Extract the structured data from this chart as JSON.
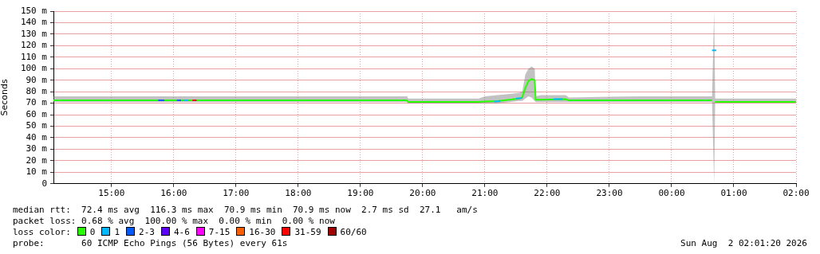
{
  "chart_data": {
    "type": "line",
    "ylabel": "Seconds",
    "legend_title": "loss color:",
    "legend": "bottom",
    "grid": true,
    "marker": "none",
    "line_style": "solid",
    "xlim": [
      "2026-08-01T14:04",
      "2026-08-02T02:00"
    ],
    "xticks": [
      {
        "value": "2026-08-01T15:00",
        "label": "15:00"
      },
      {
        "value": "2026-08-01T16:00",
        "label": "16:00"
      },
      {
        "value": "2026-08-01T17:00",
        "label": "17:00"
      },
      {
        "value": "2026-08-01T18:00",
        "label": "18:00"
      },
      {
        "value": "2026-08-01T19:00",
        "label": "19:00"
      },
      {
        "value": "2026-08-01T20:00",
        "label": "20:00"
      },
      {
        "value": "2026-08-01T21:00",
        "label": "21:00"
      },
      {
        "value": "2026-08-01T22:00",
        "label": "22:00"
      },
      {
        "value": "2026-08-01T23:00",
        "label": "23:00"
      },
      {
        "value": "2026-08-02T00:00",
        "label": "00:00"
      },
      {
        "value": "2026-08-02T01:00",
        "label": "01:00"
      },
      {
        "value": "2026-08-02T02:00",
        "label": "02:00"
      }
    ],
    "ylim": [
      0,
      150
    ],
    "yticks": [
      0,
      {
        "value": 10,
        "label": "10 m"
      },
      {
        "value": 20,
        "label": "20 m"
      },
      {
        "value": 30,
        "label": "30 m"
      },
      {
        "value": 40,
        "label": "40 m"
      },
      {
        "value": 50,
        "label": "50 m"
      },
      {
        "value": 60,
        "label": "60 m"
      },
      {
        "value": 70,
        "label": "70 m"
      },
      {
        "value": 80,
        "label": "80 m"
      },
      {
        "value": 90,
        "label": "90 m"
      },
      {
        "value": 100,
        "label": "100 m"
      },
      {
        "value": 110,
        "label": "110 m"
      },
      {
        "value": 120,
        "label": "120 m"
      },
      {
        "value": 130,
        "label": "130 m"
      },
      {
        "value": 140,
        "label": "140 m"
      },
      {
        "value": 150,
        "label": "150 m"
      }
    ],
    "series": [
      {
        "name": "0",
        "color": "#26ff00",
        "x": [
          "2026-08-01T14:04",
          "2026-08-01T19:45",
          "2026-08-01T19:46",
          "2026-08-01T20:54",
          "2026-08-01T21:00",
          "2026-08-01T21:12",
          "2026-08-01T21:24",
          "2026-08-01T21:33",
          "2026-08-01T21:36",
          "2026-08-01T21:39",
          "2026-08-01T21:42",
          "2026-08-01T21:45",
          "2026-08-01T21:48",
          "2026-08-01T21:49",
          "2026-08-01T21:54",
          "2026-08-01T22:18",
          "2026-08-01T22:21",
          "2026-08-01T23:30",
          "2026-08-02T00:00",
          "2026-08-02T00:39",
          "2026-08-02T00:41",
          "2026-08-02T00:42",
          "2026-08-02T02:00"
        ],
        "values": [
          72.5,
          72.5,
          71.2,
          71.2,
          71.5,
          71.8,
          73,
          74,
          75,
          83,
          89,
          91,
          90,
          73,
          73,
          73.5,
          72.5,
          72.5,
          72.5,
          72.5,
          null,
          71.2,
          71.2
        ],
        "lower": [
          71,
          71,
          70,
          70,
          70,
          70,
          71,
          72,
          72,
          74,
          76,
          75,
          72,
          71,
          71,
          71,
          71,
          71,
          71,
          71,
          0,
          70.5,
          70.5
        ],
        "upper": [
          76,
          76,
          74,
          74,
          76,
          77,
          78,
          79,
          80,
          95,
          100,
          102,
          100,
          76,
          77,
          77,
          75,
          76,
          76,
          76,
          150,
          74,
          74
        ]
      },
      {
        "name": "1",
        "color": "#00b8ff",
        "x": [
          "2026-08-01T16:10",
          "2026-08-01T16:14",
          "2026-08-01T16:15",
          "2026-08-01T21:09",
          "2026-08-01T21:15",
          "2026-08-01T21:18",
          "2026-08-01T21:30",
          "2026-08-01T21:36",
          "2026-08-01T21:39",
          "2026-08-01T22:06",
          "2026-08-01T22:15",
          "2026-08-01T22:18",
          "2026-08-02T00:39",
          "2026-08-02T00:43"
        ],
        "values": [
          72.5,
          72.5,
          null,
          71.5,
          71.8,
          null,
          74,
          74.5,
          null,
          73.5,
          73.5,
          null,
          116,
          116
        ]
      },
      {
        "name": "2-3",
        "color": "#0059ff",
        "x": [
          "2026-08-01T15:45",
          "2026-08-01T15:51",
          "2026-08-01T15:54",
          "2026-08-01T16:03",
          "2026-08-01T16:07"
        ],
        "values": [
          72.5,
          72.5,
          null,
          72.5,
          72.5
        ]
      },
      {
        "name": "4-6",
        "color": "#5e00ff"
      },
      {
        "name": "7-15",
        "color": "#ff00ff"
      },
      {
        "name": "16-30",
        "color": "#ff5e00"
      },
      {
        "name": "31-59",
        "color": "#ff0000",
        "x": [
          "2026-08-01T16:18",
          "2026-08-01T16:22"
        ],
        "values": [
          72.5,
          72.5
        ]
      },
      {
        "name": "60/60",
        "color": "#a10000"
      }
    ],
    "annotations": [
      "median rtt:  72.4 ms avg  116.3 ms max  70.9 ms min  70.9 ms now  2.7 ms sd  27.1   am/s",
      "packet loss: 0.68 % avg  100.00 % max  0.00 % min  0.00 % now",
      "probe:       60 ICMP Echo Pings (56 Bytes) every 61s",
      "Sun Aug  2 02:01:20 2026"
    ]
  }
}
